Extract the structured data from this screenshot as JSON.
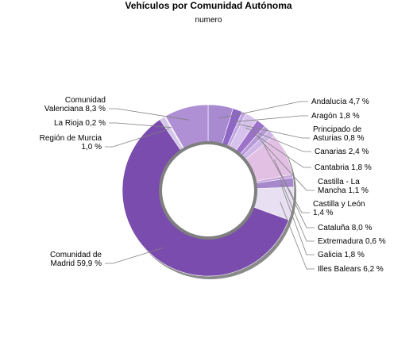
{
  "chart_data": {
    "type": "pie",
    "style": "donut",
    "title": "Vehículos por Comunidad Autónoma",
    "subtitle": "numero",
    "start_angle_deg": 0,
    "direction": "clockwise",
    "slices": [
      {
        "label": [
          "Andalucía 4,7 %"
        ],
        "value": 4.7,
        "color": "#A88AD0"
      },
      {
        "label": [
          "Aragón 1,8 %"
        ],
        "value": 1.8,
        "color": "#8E66C4"
      },
      {
        "label": [
          "Principado de",
          "Asturias 0,8 %"
        ],
        "value": 0.8,
        "color": "#C2A8E0"
      },
      {
        "label": [
          "Canarias 2,4 %"
        ],
        "value": 2.4,
        "color": "#D6C2EC"
      },
      {
        "label": [
          "Cantabria 1,8 %"
        ],
        "value": 1.8,
        "color": "#9C72C8"
      },
      {
        "label": [
          "Castilla - La",
          "Mancha 1,1 %"
        ],
        "value": 1.1,
        "color": "#B79AD8"
      },
      {
        "label": [
          "Castilla y León",
          "1,4 %"
        ],
        "value": 1.4,
        "color": "#CDB6E6"
      },
      {
        "label": [
          "Cataluña 8,0 %"
        ],
        "value": 8.0,
        "color": "#E2C0E4"
      },
      {
        "label": [
          "Extremadura 0,6 %"
        ],
        "value": 0.6,
        "color": "#C8A6DC"
      },
      {
        "label": [
          "Galicia 1,8 %"
        ],
        "value": 1.8,
        "color": "#A688CC"
      },
      {
        "label": [
          "Illes Balears 6,2 %"
        ],
        "value": 6.2,
        "color": "#E8E0F2"
      },
      {
        "label": [
          "Comunidad de",
          "Madrid 59,9 %"
        ],
        "value": 59.9,
        "color": "#7A4CAE"
      },
      {
        "label": [
          "Región de Murcia",
          "1,0 %"
        ],
        "value": 1.0,
        "color": "#D4C6E8"
      },
      {
        "label": [
          "La Rioja 0,2 %"
        ],
        "value": 0.2,
        "color": "#EFE8F6"
      },
      {
        "label": [
          "Comunidad",
          "Valenciana 8,3 %"
        ],
        "value": 8.3,
        "color": "#B090D4"
      }
    ]
  }
}
